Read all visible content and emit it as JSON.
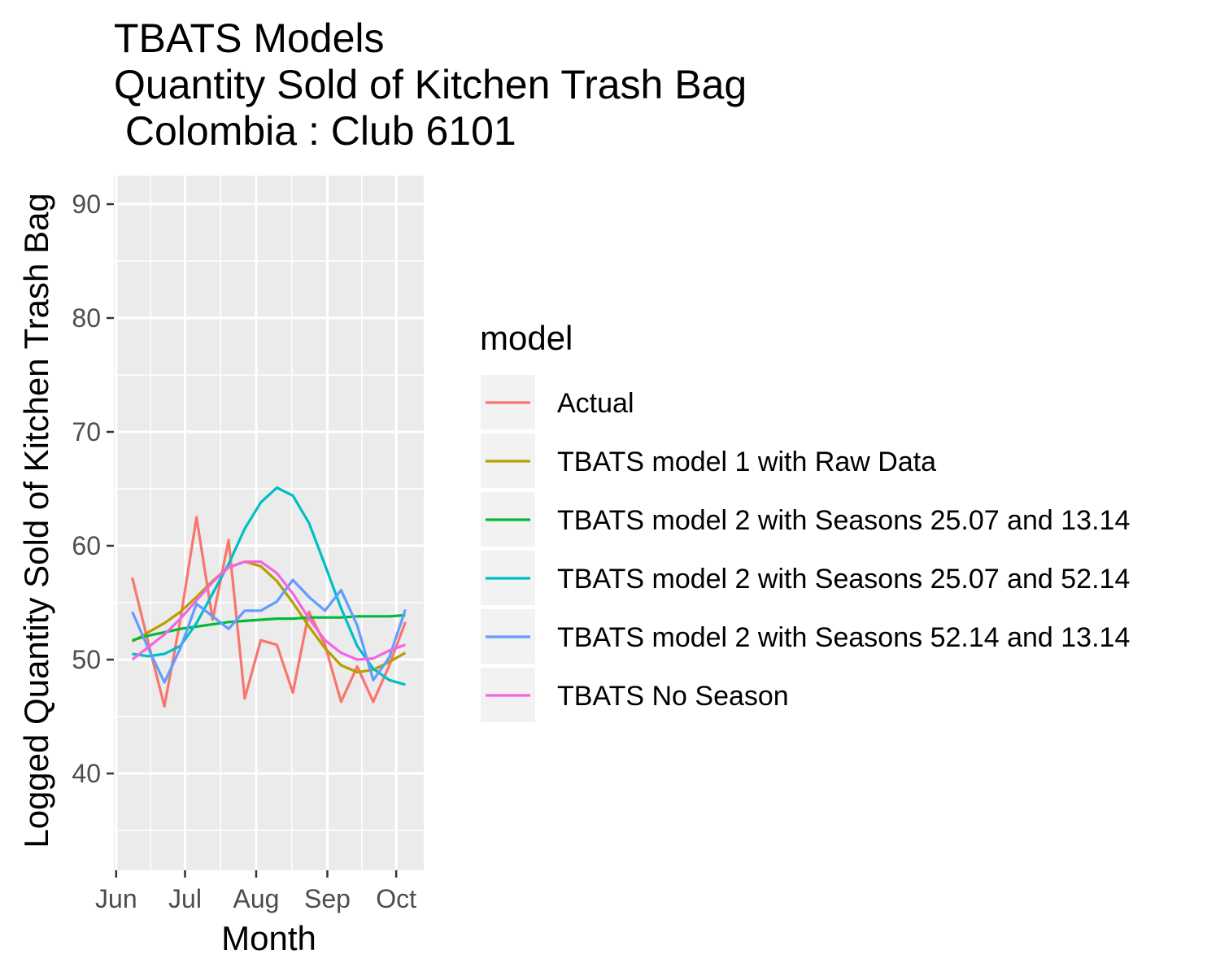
{
  "chart_data": {
    "type": "line",
    "title_lines": [
      "TBATS Models",
      "Quantity Sold of Kitchen Trash Bag",
      " Colombia : Club 6101"
    ],
    "xlabel": "Month",
    "ylabel": "Logged Quantity Sold of Kitchen Trash Bag",
    "x_tick_labels": [
      {
        "label": "Jun",
        "date": "2020-06-01"
      },
      {
        "label": "Jul",
        "date": "2020-07-01"
      },
      {
        "label": "Aug",
        "date": "2020-08-01"
      },
      {
        "label": "Sep",
        "date": "2020-09-01"
      },
      {
        "label": "Oct",
        "date": "2020-10-01"
      }
    ],
    "xlim": [
      "2020-05-31",
      "2020-10-13"
    ],
    "ylim": [
      31.5,
      92.5
    ],
    "y_ticks": [
      40,
      50,
      60,
      70,
      80,
      90
    ],
    "grid": true,
    "legend": {
      "title": "model",
      "position": "right"
    },
    "x": [
      "2020-06-08",
      "2020-06-15",
      "2020-06-22",
      "2020-06-29",
      "2020-07-06",
      "2020-07-13",
      "2020-07-20",
      "2020-07-27",
      "2020-08-03",
      "2020-08-10",
      "2020-08-17",
      "2020-08-24",
      "2020-08-31",
      "2020-09-07",
      "2020-09-14",
      "2020-09-21",
      "2020-09-28",
      "2020-10-05"
    ],
    "series": [
      {
        "name": "Actual",
        "color": "#F8766D",
        "values": [
          57.2,
          51.5,
          45.9,
          53.5,
          62.5,
          53.5,
          60.5,
          46.6,
          51.7,
          51.3,
          47.1,
          54.2,
          51.3,
          46.3,
          49.4,
          46.3,
          49.5,
          53.3
        ]
      },
      {
        "name": "TBATS model 1 with Raw Data",
        "color": "#B79F00",
        "values": [
          51.6,
          52.4,
          53.2,
          54.2,
          55.5,
          56.9,
          58.1,
          58.6,
          58.2,
          56.9,
          55.0,
          52.9,
          51.0,
          49.5,
          48.9,
          49.1,
          49.8,
          50.6
        ]
      },
      {
        "name": "TBATS model 2 with Seasons 25.07 and 13.14",
        "color": "#00BA38",
        "values": [
          51.7,
          52.1,
          52.4,
          52.7,
          52.9,
          53.1,
          53.3,
          53.4,
          53.5,
          53.6,
          53.6,
          53.7,
          53.7,
          53.7,
          53.8,
          53.8,
          53.8,
          53.9
        ]
      },
      {
        "name": "TBATS model 2 with Seasons 25.07 and 52.14",
        "color": "#00BFC4",
        "values": [
          50.5,
          50.3,
          50.5,
          51.2,
          53.2,
          55.8,
          58.4,
          61.5,
          63.8,
          65.1,
          64.4,
          62.0,
          58.3,
          54.5,
          51.2,
          49.2,
          48.2,
          47.8
        ]
      },
      {
        "name": "TBATS model 2 with Seasons 52.14 and 13.14",
        "color": "#619CFF",
        "values": [
          54.2,
          51.0,
          48.0,
          51.0,
          54.9,
          53.8,
          52.7,
          54.3,
          54.3,
          55.1,
          57.0,
          55.5,
          54.3,
          56.1,
          53.0,
          48.2,
          50.2,
          54.4
        ]
      },
      {
        "name": "TBATS No Season",
        "color": "#F564E3",
        "values": [
          50.0,
          51.1,
          52.2,
          53.6,
          55.2,
          56.8,
          58.1,
          58.6,
          58.6,
          57.6,
          55.8,
          53.6,
          51.7,
          50.6,
          50.0,
          50.1,
          50.8,
          51.3
        ]
      }
    ]
  }
}
